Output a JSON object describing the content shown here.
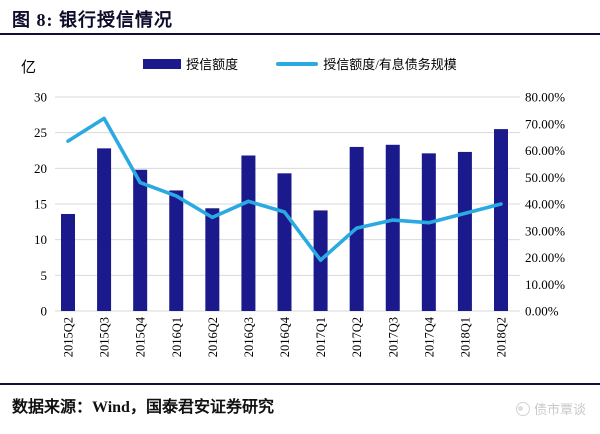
{
  "figure": {
    "title": "图 8: 银行授信情况",
    "source": "数据来源：Wind，国泰君安证券研究"
  },
  "watermark": {
    "label": "债市覃谈"
  },
  "colors": {
    "bar": "#1A1A8C",
    "line": "#2BAAE2",
    "grid": "#D9D9D9",
    "axis_text": "#000000",
    "rule": "#10103A",
    "watermark": "#C9C9C9"
  },
  "chart_data": {
    "type": "bar",
    "subtype": "bar-line combo, dual axis",
    "categories": [
      "2015Q2",
      "2015Q3",
      "2015Q4",
      "2016Q1",
      "2016Q2",
      "2016Q3",
      "2016Q4",
      "2017Q1",
      "2017Q2",
      "2017Q3",
      "2017Q4",
      "2018Q1",
      "2018Q2"
    ],
    "series": [
      {
        "name": "授信额度",
        "type": "bar",
        "axis": "left",
        "color": "#1A1A8C",
        "values": [
          13.6,
          22.8,
          19.8,
          16.9,
          14.4,
          21.8,
          19.3,
          14.1,
          23.0,
          23.3,
          22.1,
          22.3,
          25.5
        ]
      },
      {
        "name": "授信额度/有息债务规模",
        "type": "line",
        "axis": "right",
        "color": "#2BAAE2",
        "values": [
          63.5,
          72,
          48,
          43,
          35,
          41,
          37,
          19,
          31,
          34,
          33,
          36.5,
          40
        ]
      }
    ],
    "left_axis": {
      "label": "亿",
      "min": 0,
      "max": 30,
      "step": 5,
      "ticks": [
        "30",
        "25",
        "20",
        "15",
        "10",
        "5",
        "0"
      ]
    },
    "right_axis": {
      "min": 0,
      "max": 80,
      "step": 10,
      "unit": "%",
      "ticks": [
        "80.00%",
        "70.00%",
        "60.00%",
        "50.00%",
        "40.00%",
        "30.00%",
        "20.00%",
        "10.00%",
        "0.00%"
      ]
    },
    "grid": "horizontal",
    "legend_position": "top-center",
    "x_tick_rotation": -90
  }
}
